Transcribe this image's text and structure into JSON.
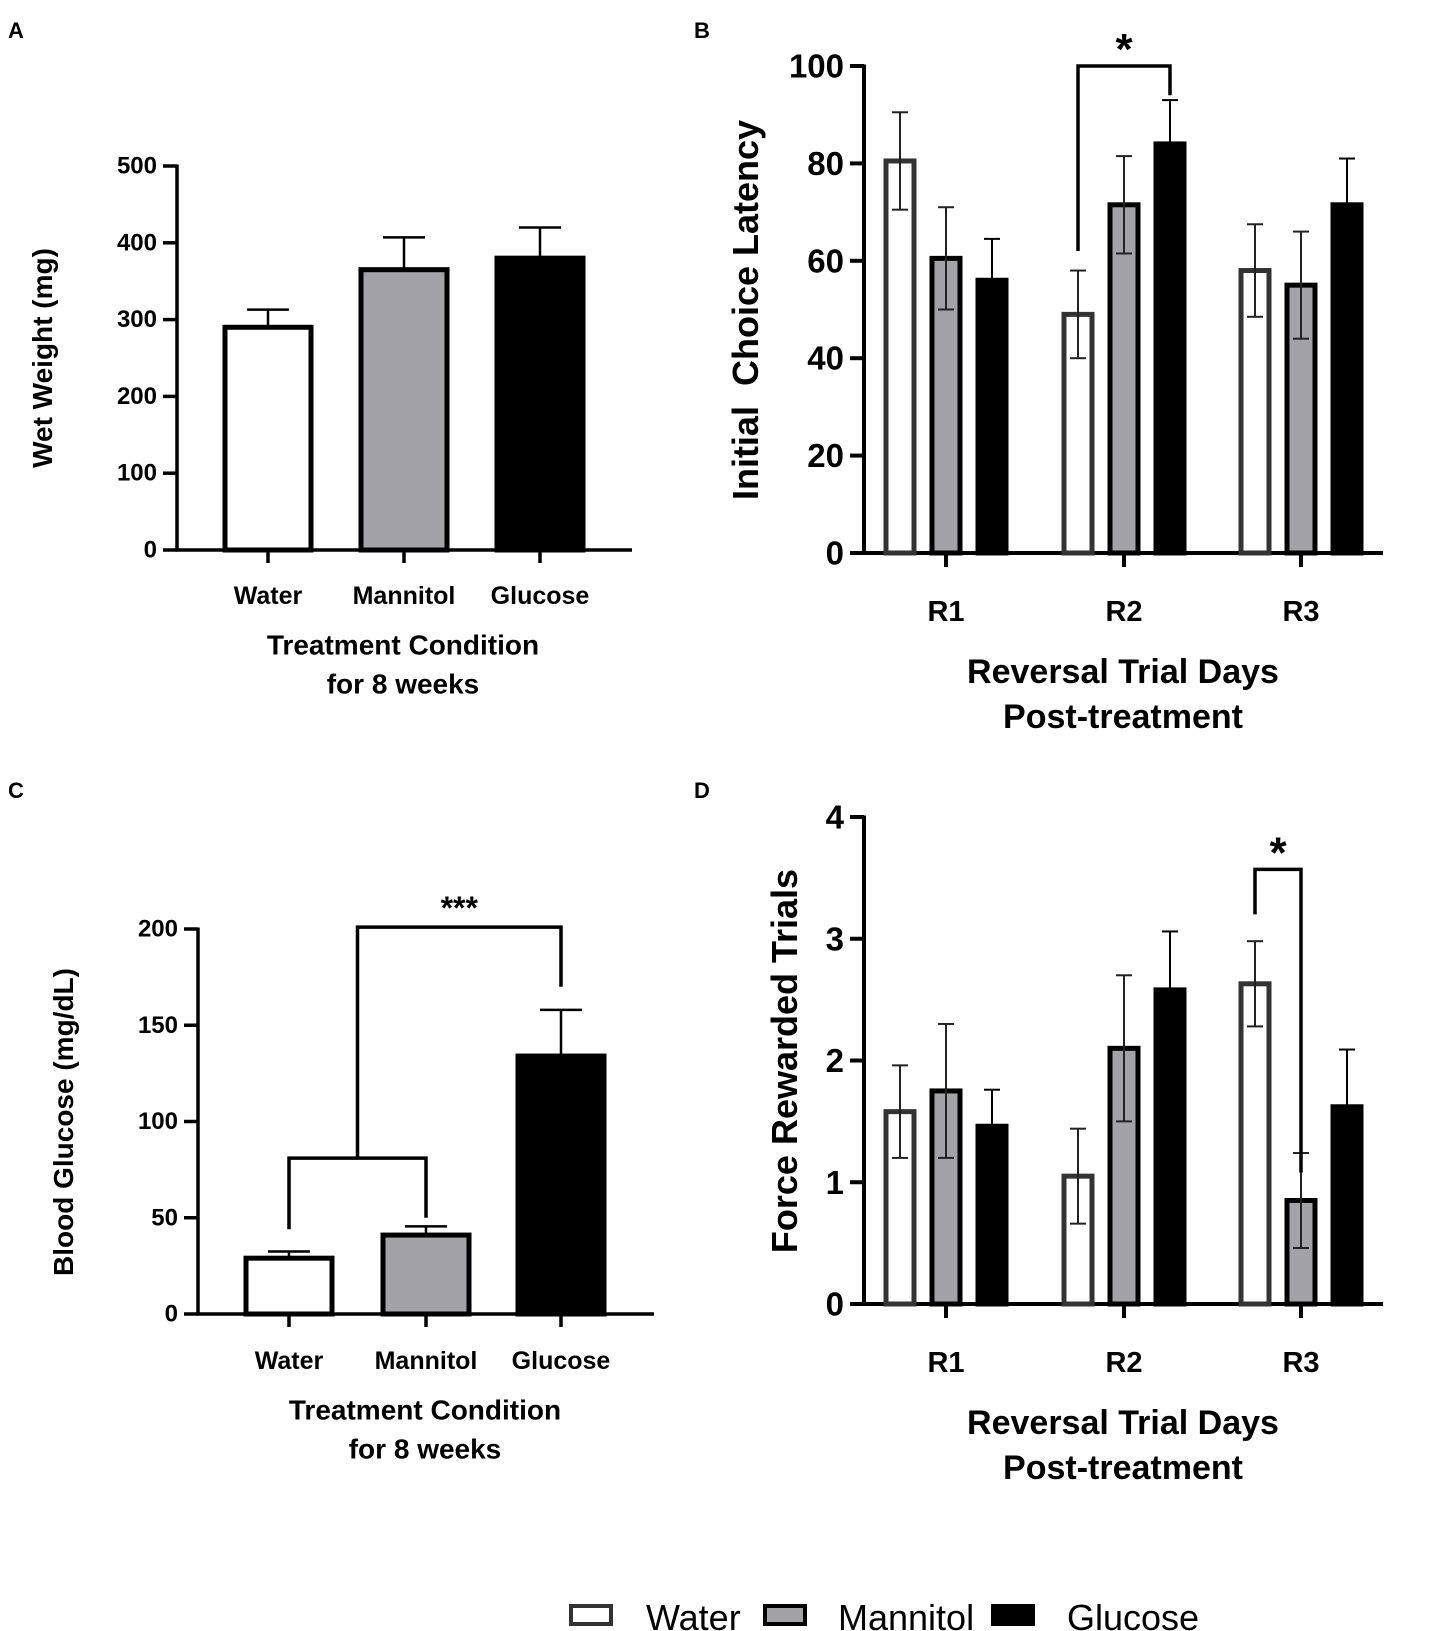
{
  "figure": {
    "legend": [
      {
        "name": "Water",
        "fill": "#ffffff"
      },
      {
        "name": "Mannitol",
        "fill": "#a3a3a7"
      },
      {
        "name": "Glucose",
        "fill": "#000000"
      }
    ]
  },
  "chart_data": [
    {
      "id": "A",
      "panel_label": "A",
      "type": "bar",
      "categories": [
        "Water",
        "Mannitol",
        "Glucose"
      ],
      "values": [
        290,
        365,
        380
      ],
      "errors": [
        23,
        42,
        40
      ],
      "fills": [
        "#ffffff",
        "#a3a3a7",
        "#000000"
      ],
      "ylabel": "Wet Weight (mg)",
      "xlabel_lines": [
        "Treatment Condition",
        "for 8 weeks"
      ],
      "ylim": [
        0,
        500
      ],
      "yticks": [
        0,
        100,
        200,
        300,
        400,
        500
      ],
      "brackets": []
    },
    {
      "id": "B",
      "panel_label": "B",
      "type": "bar",
      "categories": [
        "R1",
        "R2",
        "R3"
      ],
      "series": [
        {
          "name": "Water",
          "fill": "#ffffff",
          "values": [
            80.5,
            49,
            58
          ],
          "errors": [
            10,
            9,
            9.5
          ]
        },
        {
          "name": "Mannitol",
          "fill": "#a3a3a7",
          "values": [
            60.5,
            71.5,
            55
          ],
          "errors": [
            10.5,
            10,
            11
          ]
        },
        {
          "name": "Glucose",
          "fill": "#000000",
          "values": [
            56,
            84,
            71.5
          ],
          "errors": [
            8.5,
            9,
            9.5
          ]
        }
      ],
      "ylabel": "Initial  Choice Latency",
      "xlabel_lines": [
        "Reversal Trial Days",
        "Post-treatment"
      ],
      "ylim": [
        0,
        100
      ],
      "yticks": [
        0,
        20,
        40,
        60,
        80,
        100
      ],
      "brackets": [
        {
          "label": "*",
          "from": [
            1,
            0
          ],
          "to": [
            1,
            2
          ],
          "y": 100,
          "left_drop_to": 62,
          "right_drop_to": 94
        }
      ]
    },
    {
      "id": "C",
      "panel_label": "C",
      "type": "bar",
      "categories": [
        "Water",
        "Mannitol",
        "Glucose"
      ],
      "values": [
        29,
        41,
        134
      ],
      "errors": [
        3.5,
        4.5,
        24
      ],
      "fills": [
        "#ffffff",
        "#a3a3a7",
        "#000000"
      ],
      "ylabel": "Blood Glucose (mg/dL)",
      "xlabel_lines": [
        "Treatment Condition",
        "for 8 weeks"
      ],
      "ylim": [
        0,
        200
      ],
      "yticks": [
        0,
        50,
        100,
        150,
        200
      ],
      "brackets": [
        {
          "label": "",
          "from": [
            0
          ],
          "to": [
            1
          ],
          "y": 81,
          "left_drop_to": 44,
          "right_drop_to": 50
        },
        {
          "label": "***",
          "from": [
            "mid01"
          ],
          "to": [
            2
          ],
          "y": 201,
          "left_drop_to": 81,
          "right_drop_to": 170
        }
      ]
    },
    {
      "id": "D",
      "panel_label": "D",
      "type": "bar",
      "categories": [
        "R1",
        "R2",
        "R3"
      ],
      "series": [
        {
          "name": "Water",
          "fill": "#ffffff",
          "values": [
            1.58,
            1.05,
            2.63
          ],
          "errors": [
            0.38,
            0.39,
            0.35
          ]
        },
        {
          "name": "Mannitol",
          "fill": "#a3a3a7",
          "values": [
            1.75,
            2.1,
            0.85
          ],
          "errors": [
            0.55,
            0.6,
            0.39
          ]
        },
        {
          "name": "Glucose",
          "fill": "#000000",
          "values": [
            1.46,
            2.58,
            1.62
          ],
          "errors": [
            0.3,
            0.48,
            0.47
          ]
        }
      ],
      "ylabel": "Force Rewarded Trials",
      "xlabel_lines": [
        "Reversal Trial Days",
        "Post-treatment"
      ],
      "ylim": [
        0,
        4
      ],
      "yticks": [
        0,
        1,
        2,
        3,
        4
      ],
      "brackets": [
        {
          "label": "*",
          "from": [
            2,
            0
          ],
          "to": [
            2,
            1
          ],
          "y": 3.57,
          "left_drop_to": 3.2,
          "right_drop_to": 1.08
        }
      ]
    }
  ]
}
